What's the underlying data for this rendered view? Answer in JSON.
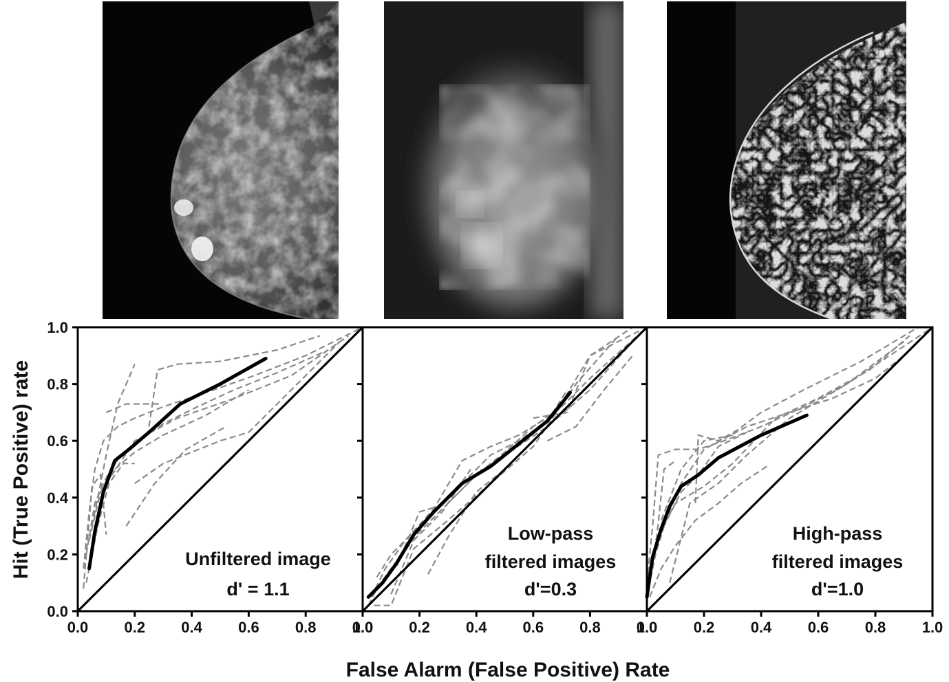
{
  "panels": [
    {
      "name": "unfiltered",
      "image": "unfiltered mammogram"
    },
    {
      "name": "low-pass",
      "image": "low-pass filtered mammogram"
    },
    {
      "name": "high-pass",
      "image": "high-pass filtered mammogram"
    }
  ],
  "chart_data": [
    {
      "type": "line",
      "annotation": [
        "Unfiltered image",
        "d' = 1.1"
      ],
      "xlim": [
        0,
        1
      ],
      "ylim": [
        0,
        1
      ],
      "xticks": [
        "0.0",
        "0.2",
        "0.4",
        "0.6",
        "0.8",
        "1.0"
      ],
      "yticks": [
        "0.0",
        "0.2",
        "0.4",
        "0.6",
        "0.8",
        "1.0"
      ],
      "mean_curve": {
        "x": [
          0.04,
          0.06,
          0.09,
          0.13,
          0.18,
          0.25,
          0.36,
          0.5,
          0.66
        ],
        "y": [
          0.15,
          0.28,
          0.42,
          0.53,
          0.57,
          0.63,
          0.73,
          0.8,
          0.89
        ]
      },
      "observers": [
        {
          "x": [
            0.02,
            0.04,
            0.06,
            0.09,
            0.14,
            0.2,
            0.3,
            0.45,
            0.62,
            0.8,
            1.0
          ],
          "y": [
            0.15,
            0.35,
            0.5,
            0.6,
            0.65,
            0.68,
            0.72,
            0.77,
            0.83,
            0.9,
            1.0
          ]
        },
        {
          "x": [
            0.03,
            0.06,
            0.1,
            0.15,
            0.21,
            0.3,
            0.42,
            0.55,
            0.7,
            0.88
          ],
          "y": [
            0.2,
            0.38,
            0.47,
            0.55,
            0.6,
            0.66,
            0.72,
            0.78,
            0.84,
            0.92
          ]
        },
        {
          "x": [
            0.02,
            0.05,
            0.08,
            0.1
          ],
          "y": [
            0.08,
            0.44,
            0.48,
            0.27
          ]
        },
        {
          "x": [
            0.05,
            0.1,
            0.14,
            0.2
          ],
          "y": [
            0.3,
            0.55,
            0.73,
            0.87
          ]
        },
        {
          "x": [
            0.1,
            0.17,
            0.29
          ],
          "y": [
            0.7,
            0.73,
            0.73
          ]
        },
        {
          "x": [
            0.17,
            0.27,
            0.38,
            0.52
          ],
          "y": [
            0.3,
            0.45,
            0.57,
            0.65
          ]
        },
        {
          "x": [
            0.25,
            0.28,
            0.35,
            0.5,
            0.7,
            0.85
          ],
          "y": [
            0.65,
            0.85,
            0.87,
            0.88,
            0.92,
            0.97
          ]
        },
        {
          "x": [
            0.04,
            0.08,
            0.13,
            0.2,
            0.3,
            0.45,
            0.6
          ],
          "y": [
            0.25,
            0.42,
            0.5,
            0.56,
            0.62,
            0.69,
            0.78
          ]
        },
        {
          "x": [
            0.1,
            0.2,
            0.35,
            0.55,
            0.75,
            0.95
          ],
          "y": [
            0.45,
            0.6,
            0.68,
            0.75,
            0.83,
            0.97
          ]
        },
        {
          "x": [
            0.03,
            0.07,
            0.11,
            0.16,
            0.2
          ],
          "y": [
            0.1,
            0.3,
            0.45,
            0.52,
            0.52
          ]
        },
        {
          "x": [
            0.2,
            0.3,
            0.5,
            0.6,
            0.75,
            0.92
          ],
          "y": [
            0.45,
            0.52,
            0.6,
            0.63,
            0.78,
            0.95
          ]
        }
      ]
    },
    {
      "type": "line",
      "annotation": [
        "Low-pass",
        "filtered images",
        "d'=0.3"
      ],
      "xlim": [
        0,
        1
      ],
      "ylim": [
        0,
        1
      ],
      "xticks": [
        "0.0",
        "0.2",
        "0.4",
        "0.6",
        "0.8",
        "1.0"
      ],
      "yticks": [],
      "mean_curve": {
        "x": [
          0.02,
          0.07,
          0.12,
          0.18,
          0.25,
          0.35,
          0.45,
          0.55,
          0.65,
          0.73
        ],
        "y": [
          0.05,
          0.1,
          0.17,
          0.27,
          0.35,
          0.45,
          0.51,
          0.59,
          0.67,
          0.77
        ]
      },
      "observers": [
        {
          "x": [
            0.02,
            0.05,
            0.1,
            0.2,
            0.3,
            0.4,
            0.5,
            0.6,
            0.7,
            0.8,
            1.0
          ],
          "y": [
            0.02,
            0.08,
            0.15,
            0.28,
            0.38,
            0.48,
            0.56,
            0.65,
            0.72,
            0.82,
            1.0
          ]
        },
        {
          "x": [
            0.05,
            0.1,
            0.2,
            0.35,
            0.5,
            0.65,
            0.8,
            0.95
          ],
          "y": [
            0.12,
            0.2,
            0.3,
            0.45,
            0.55,
            0.65,
            0.78,
            0.95
          ]
        },
        {
          "x": [
            0.03,
            0.08,
            0.15,
            0.25,
            0.35,
            0.45,
            0.55,
            0.68,
            0.8,
            0.95
          ],
          "y": [
            0.05,
            0.15,
            0.25,
            0.36,
            0.53,
            0.58,
            0.62,
            0.7,
            0.9,
            1.0
          ]
        },
        {
          "x": [
            0.1,
            0.18,
            0.28,
            0.38
          ],
          "y": [
            0.06,
            0.25,
            0.35,
            0.5
          ]
        },
        {
          "x": [
            0.04,
            0.1,
            0.18,
            0.3,
            0.45,
            0.6,
            0.75,
            0.9
          ],
          "y": [
            0.02,
            0.02,
            0.22,
            0.32,
            0.45,
            0.58,
            0.8,
            0.97
          ]
        },
        {
          "x": [
            0.12,
            0.2,
            0.3,
            0.42
          ],
          "y": [
            0.16,
            0.35,
            0.38,
            0.5
          ]
        },
        {
          "x": [
            0.23,
            0.3,
            0.4,
            0.5,
            0.6
          ],
          "y": [
            0.13,
            0.26,
            0.42,
            0.5,
            0.6
          ]
        },
        {
          "x": [
            0.3,
            0.45,
            0.55,
            0.65,
            0.72
          ],
          "y": [
            0.4,
            0.55,
            0.6,
            0.67,
            0.78
          ]
        },
        {
          "x": [
            0.6,
            0.72,
            0.8,
            0.9,
            0.98
          ],
          "y": [
            0.68,
            0.7,
            0.9,
            0.95,
            0.99
          ]
        },
        {
          "x": [
            0.65,
            0.75,
            0.85,
            0.95
          ],
          "y": [
            0.6,
            0.65,
            0.78,
            0.9
          ]
        }
      ]
    },
    {
      "type": "line",
      "annotation": [
        "High-pass",
        "filtered images",
        "d'=1.0"
      ],
      "xlim": [
        0,
        1
      ],
      "ylim": [
        0,
        1
      ],
      "xticks": [
        "0.0",
        "0.2",
        "0.4",
        "0.6",
        "0.8",
        "1.0"
      ],
      "yticks": [],
      "mean_curve": {
        "x": [
          0.0,
          0.02,
          0.05,
          0.08,
          0.12,
          0.18,
          0.25,
          0.4,
          0.56
        ],
        "y": [
          0.05,
          0.19,
          0.29,
          0.37,
          0.44,
          0.48,
          0.54,
          0.62,
          0.69
        ]
      },
      "observers": [
        {
          "x": [
            0.0,
            0.03,
            0.07,
            0.12,
            0.2,
            0.35,
            0.5,
            0.65,
            0.8,
            0.9,
            1.0
          ],
          "y": [
            0.05,
            0.2,
            0.33,
            0.45,
            0.57,
            0.65,
            0.7,
            0.75,
            0.82,
            0.9,
            1.0
          ]
        },
        {
          "x": [
            0.0,
            0.02,
            0.04,
            0.1,
            0.18,
            0.27,
            0.4,
            0.55,
            0.7,
            0.85,
            1.0
          ],
          "y": [
            0.1,
            0.3,
            0.55,
            0.57,
            0.57,
            0.6,
            0.65,
            0.72,
            0.8,
            0.9,
            1.0
          ]
        },
        {
          "x": [
            0.01,
            0.05,
            0.1,
            0.17,
            0.25,
            0.33,
            0.42
          ],
          "y": [
            0.05,
            0.15,
            0.23,
            0.32,
            0.38,
            0.45,
            0.51
          ]
        },
        {
          "x": [
            0.02,
            0.06,
            0.12,
            0.18,
            0.25,
            0.35
          ],
          "y": [
            0.2,
            0.3,
            0.42,
            0.48,
            0.58,
            0.63
          ]
        },
        {
          "x": [
            0.0,
            0.03,
            0.06,
            0.1
          ],
          "y": [
            0.12,
            0.22,
            0.5,
            0.53
          ]
        },
        {
          "x": [
            0.17,
            0.18,
            0.25,
            0.32,
            0.4,
            0.55,
            0.75,
            0.95
          ],
          "y": [
            0.38,
            0.62,
            0.6,
            0.64,
            0.7,
            0.78,
            0.88,
            1.0
          ]
        },
        {
          "x": [
            0.08,
            0.15,
            0.25,
            0.35,
            0.5,
            0.7,
            0.9
          ],
          "y": [
            0.1,
            0.38,
            0.45,
            0.55,
            0.68,
            0.8,
            0.95
          ]
        },
        {
          "x": [
            0.03,
            0.1,
            0.2,
            0.3,
            0.45,
            0.6,
            0.78,
            0.92
          ],
          "y": [
            0.25,
            0.38,
            0.44,
            0.52,
            0.68,
            0.75,
            0.85,
            0.97
          ]
        },
        {
          "x": [
            0.05,
            0.12,
            0.2,
            0.3
          ],
          "y": [
            0.32,
            0.5,
            0.6,
            0.62
          ]
        }
      ]
    }
  ],
  "axes": {
    "xlabel": "False Alarm (False Positive) Rate",
    "ylabel": "Hit (True Positive) rate"
  },
  "colors": {
    "mean": "#000000",
    "observer": "#8a8a8a",
    "diagonal": "#000000",
    "frame": "#000000"
  }
}
